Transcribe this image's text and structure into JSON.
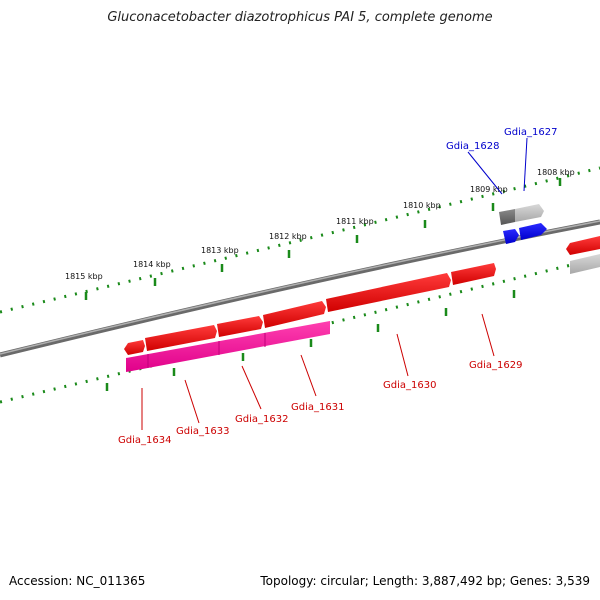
{
  "title": "Gluconacetobacter diazotrophicus PAI 5, complete genome",
  "footer": {
    "accession": "Accession: NC_011365",
    "summary": "Topology: circular; Length: 3,887,492 bp; Genes: 3,539"
  },
  "colors": {
    "forward_gene": "#ff0000",
    "reverse_gene": "#ff1493",
    "other_forward": "#0000ff",
    "other_reverse": "#7a7a7a",
    "tick": "#1a8a1a",
    "backbone": "#808080",
    "label_red": "#cc0000",
    "label_blue": "#0000cc"
  },
  "ticks": [
    {
      "label": "1808 kbp"
    },
    {
      "label": "1809 kbp"
    },
    {
      "label": "1810 kbp"
    },
    {
      "label": "1811 kbp"
    },
    {
      "label": "1812 kbp"
    },
    {
      "label": "1813 kbp"
    },
    {
      "label": "1814 kbp"
    },
    {
      "label": "1815 kbp"
    }
  ],
  "genes": [
    {
      "id": "Gdia_1627",
      "color": "blue"
    },
    {
      "id": "Gdia_1628",
      "color": "blue"
    },
    {
      "id": "Gdia_1629",
      "color": "red"
    },
    {
      "id": "Gdia_1630",
      "color": "red"
    },
    {
      "id": "Gdia_1631",
      "color": "red"
    },
    {
      "id": "Gdia_1632",
      "color": "red"
    },
    {
      "id": "Gdia_1633",
      "color": "red"
    },
    {
      "id": "Gdia_1634",
      "color": "red"
    }
  ]
}
